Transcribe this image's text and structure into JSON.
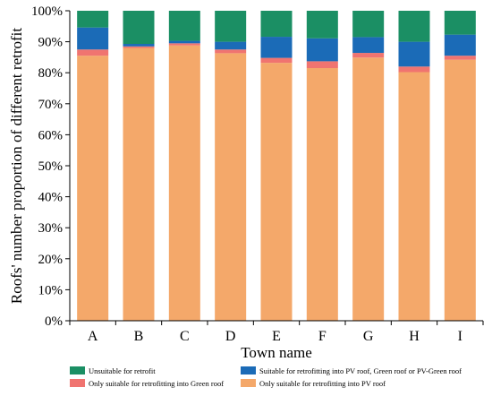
{
  "chart_data": {
    "type": "bar",
    "stacked": true,
    "title": "",
    "xlabel": "Town name",
    "ylabel": "Roofs' number proportion of different retrofit",
    "categories": [
      "A",
      "B",
      "C",
      "D",
      "E",
      "F",
      "G",
      "H",
      "I"
    ],
    "ylim": [
      0,
      100
    ],
    "y_tick_labels": [
      "0%",
      "10%",
      "20%",
      "30%",
      "40%",
      "50%",
      "60%",
      "70%",
      "80%",
      "90%",
      "100%"
    ],
    "y_tick_values": [
      0,
      10,
      20,
      30,
      40,
      50,
      60,
      70,
      80,
      90,
      100
    ],
    "grid": false,
    "legend_position": "bottom",
    "series": [
      {
        "name": "Only suitable for retrofitting into PV roof",
        "color": "#F4A86A",
        "values": [
          85.5,
          88.0,
          88.8,
          86.3,
          83.2,
          81.5,
          84.9,
          80.2,
          84.2
        ]
      },
      {
        "name": "Only suitable for retrofitting into Green roof",
        "color": "#F07470",
        "values": [
          2.0,
          0.5,
          0.7,
          1.2,
          1.6,
          2.2,
          1.5,
          1.8,
          1.3
        ]
      },
      {
        "name": "Suitable for retrofitting into PV roof, Green roof or PV-Green roof",
        "color": "#1B6BB7",
        "values": [
          7.1,
          0.8,
          0.8,
          2.5,
          6.8,
          7.4,
          5.1,
          8.0,
          6.8
        ]
      },
      {
        "name": "Unsuitable for retrofit",
        "color": "#1B8F64",
        "values": [
          5.4,
          10.7,
          9.7,
          10.0,
          8.4,
          8.9,
          8.5,
          10.0,
          7.7
        ]
      }
    ],
    "legend_order": [
      3,
      2,
      1,
      0
    ]
  }
}
